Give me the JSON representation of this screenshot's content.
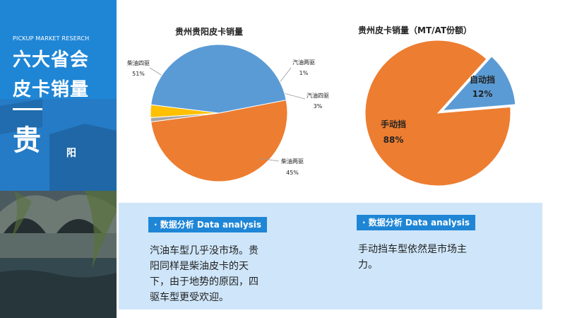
{
  "sidebar": {
    "brand": "PICKUP MARKET RESERCH",
    "title_line1": "六大省会",
    "title_line2": "皮卡销量",
    "city_big": "贵",
    "city_small": "阳"
  },
  "colors": {
    "orange": "#ed7d31",
    "blue": "#5b9bd5",
    "yellow": "#ffc000",
    "gray": "#a5a5a5",
    "panel_bg": "#cfe6fa",
    "badge_bg": "#1f86d6"
  },
  "chart_data": [
    {
      "type": "pie",
      "title": "贵州贵阳皮卡销量",
      "labels": [
        "柴油四驱",
        "汽油两驱",
        "汽油四驱",
        "柴油两驱"
      ],
      "values": [
        51,
        1,
        3,
        45
      ],
      "value_labels": [
        "51%",
        "1%",
        "3%",
        "45%"
      ],
      "colors": [
        "#ed7d31",
        "#a5a5a5",
        "#ffc000",
        "#5b9bd5"
      ]
    },
    {
      "type": "pie",
      "title": "贵州皮卡销量（MT/AT份额）",
      "labels": [
        "自动挡",
        "手动挡"
      ],
      "values": [
        12,
        88
      ],
      "value_labels": [
        "12%",
        "88%"
      ],
      "colors": [
        "#5b9bd5",
        "#ed7d31"
      ]
    }
  ],
  "analysis": [
    {
      "badge": "· 数据分析 Data analysis",
      "lines": [
        "汽油车型几乎没市场。贵",
        "阳同样是柴油皮卡的天",
        "下，由于地势的原因，四",
        "驱车型更受欢迎。"
      ]
    },
    {
      "badge": "· 数据分析 Data analysis",
      "lines": [
        "手动挡车型依然是市场主",
        "力。"
      ]
    }
  ]
}
